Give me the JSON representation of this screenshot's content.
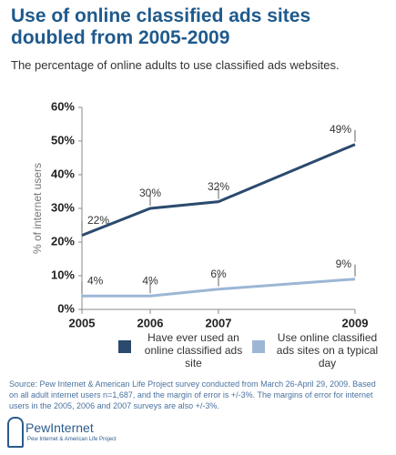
{
  "chart_data": {
    "type": "line",
    "title": "Use of online classified ads sites doubled from 2005-2009",
    "subtitle": "The percentage of online adults to use classified ads websites.",
    "y_label": "% of internet users",
    "x": [
      2005,
      2006,
      2007,
      2009
    ],
    "xlim": [
      2005,
      2009
    ],
    "xticks": [
      2005,
      2006,
      2007,
      2009
    ],
    "ylim": [
      0,
      60
    ],
    "yticks": [
      {
        "value": 0,
        "label": "0%"
      },
      {
        "value": 10,
        "label": "10%"
      },
      {
        "value": 20,
        "label": "20%"
      },
      {
        "value": 30,
        "label": "30%"
      },
      {
        "value": 40,
        "label": "40%"
      },
      {
        "value": 50,
        "label": "50%"
      },
      {
        "value": 60,
        "label": "60%"
      }
    ],
    "grid": false,
    "series": [
      {
        "name": "Have ever used an online classified ads site",
        "color": "#2b4a6e",
        "values": [
          22,
          30,
          32,
          49
        ],
        "value_labels": [
          "22%",
          "30%",
          "32%",
          "49%"
        ]
      },
      {
        "name": "Use online classified ads sites on a typical day",
        "color": "#9db6d6",
        "values": [
          4,
          4,
          6,
          9
        ],
        "value_labels": [
          "4%",
          "4%",
          "6%",
          "9%"
        ]
      }
    ],
    "source": "Source: Pew Internet & American Life Project survey conducted from March 26-April 29, 2009. Based on all adult internet users n=1,687, and the margin of error is +/-3%. The margins of error for internet users in the 2005, 2006 and 2007 surveys are also +/-3%.",
    "logo": "PewInternet",
    "logo_tagline": "Pew Internet & American Life Project"
  }
}
